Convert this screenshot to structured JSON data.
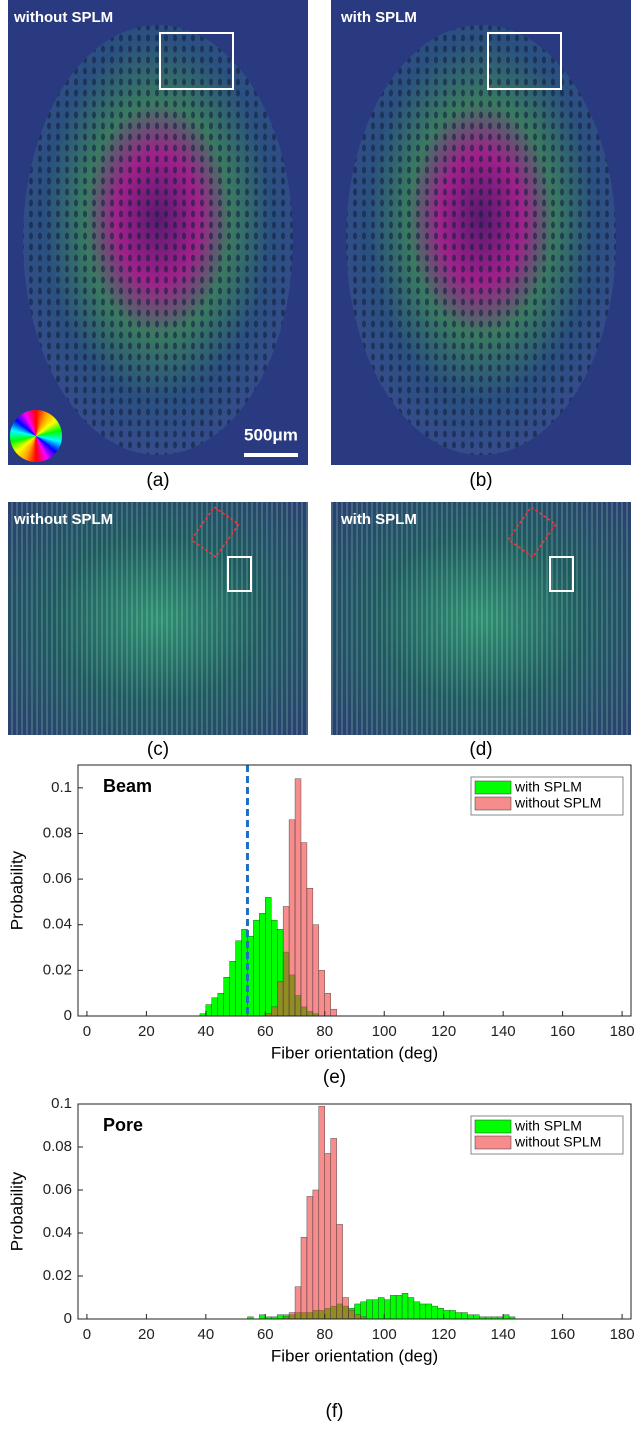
{
  "panels": [
    {
      "label": "without SPLM",
      "caption": "(a)"
    },
    {
      "label": "with SPLM",
      "caption": "(b)"
    },
    {
      "label": "without SPLM",
      "caption": "(c)"
    },
    {
      "label": "with SPLM",
      "caption": "(d)"
    }
  ],
  "scale_bar": "500μm",
  "chart_data": [
    {
      "type": "histogram",
      "annotation": "Beam",
      "caption": "(e)",
      "x_label": "Fiber orientation (deg)",
      "y_label": "Probability",
      "bins": [
        38,
        40,
        42,
        44,
        46,
        48,
        50,
        52,
        54,
        56,
        58,
        60,
        62,
        64,
        66,
        68,
        70,
        72,
        74,
        76,
        78,
        80,
        82,
        84
      ],
      "series": [
        {
          "name": "with SPLM",
          "color": "#00ff00",
          "values": [
            0.001,
            0.005,
            0.008,
            0.01,
            0.017,
            0.024,
            0.033,
            0.038,
            0.035,
            0.042,
            0.045,
            0.052,
            0.042,
            0.038,
            0.028,
            0.018,
            0.009,
            0.004,
            0.002,
            0.001,
            0,
            0,
            0
          ]
        },
        {
          "name": "without SPLM",
          "color": "#f04040",
          "values": [
            0,
            0,
            0,
            0,
            0,
            0,
            0,
            0,
            0,
            0,
            0,
            0.001,
            0.004,
            0.015,
            0.048,
            0.086,
            0.104,
            0.076,
            0.056,
            0.04,
            0.02,
            0.01,
            0.003
          ]
        }
      ],
      "vline": 54,
      "vline_color": "#1f6fc0",
      "xlim": [
        -3,
        183
      ],
      "xticks": [
        0,
        20,
        40,
        60,
        80,
        100,
        120,
        140,
        160,
        180
      ],
      "ylim": [
        0,
        0.11
      ],
      "yticks": [
        0,
        0.02,
        0.04,
        0.06,
        0.08,
        0.1
      ],
      "legend": "upper right"
    },
    {
      "type": "histogram",
      "annotation": "Pore",
      "caption": "(f)",
      "x_label": "Fiber orientation (deg)",
      "y_label": "Probability",
      "bins": [
        50,
        52,
        54,
        56,
        58,
        60,
        62,
        64,
        66,
        68,
        70,
        72,
        74,
        76,
        78,
        80,
        82,
        84,
        86,
        88,
        90,
        92,
        94,
        96,
        98,
        100,
        102,
        104,
        106,
        108,
        110,
        112,
        114,
        116,
        118,
        120,
        122,
        124,
        126,
        128,
        130,
        132,
        134,
        136,
        138,
        140,
        142,
        144
      ],
      "series": [
        {
          "name": "with SPLM",
          "color": "#00ff00",
          "values": [
            0,
            0,
            0.001,
            0,
            0.002,
            0.001,
            0.001,
            0.002,
            0.002,
            0.002,
            0.003,
            0.003,
            0.003,
            0.004,
            0.004,
            0.005,
            0.006,
            0.007,
            0.006,
            0.005,
            0.007,
            0.008,
            0.009,
            0.009,
            0.01,
            0.009,
            0.011,
            0.011,
            0.012,
            0.01,
            0.008,
            0.007,
            0.007,
            0.006,
            0.005,
            0.004,
            0.004,
            0.003,
            0.003,
            0.002,
            0.002,
            0.001,
            0.001,
            0.001,
            0.001,
            0.002,
            0.001
          ]
        },
        {
          "name": "without SPLM",
          "color": "#f04040",
          "values": [
            0,
            0,
            0,
            0,
            0,
            0,
            0,
            0,
            0.001,
            0.003,
            0.015,
            0.038,
            0.057,
            0.06,
            0.099,
            0.077,
            0.084,
            0.044,
            0.01,
            0.004,
            0.002,
            0.001,
            0,
            0,
            0,
            0,
            0,
            0,
            0,
            0,
            0,
            0,
            0,
            0,
            0,
            0,
            0,
            0,
            0,
            0,
            0,
            0,
            0,
            0,
            0,
            0,
            0
          ]
        }
      ],
      "xlim": [
        -3,
        183
      ],
      "xticks": [
        0,
        20,
        40,
        60,
        80,
        100,
        120,
        140,
        160,
        180
      ],
      "ylim": [
        0,
        0.1
      ],
      "yticks": [
        0,
        0.02,
        0.04,
        0.06,
        0.08,
        0.1
      ],
      "legend": "upper right"
    }
  ]
}
